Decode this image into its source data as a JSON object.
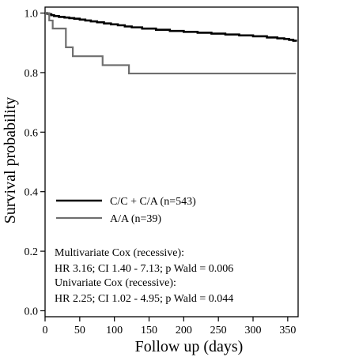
{
  "chart_data": {
    "type": "line",
    "xlabel": "Follow up (days)",
    "ylabel": "Survival probability",
    "xlim": [
      0,
      365
    ],
    "ylim": [
      -0.02,
      1.02
    ],
    "x_ticks": [
      "0",
      "50",
      "100",
      "150",
      "200",
      "250",
      "300",
      "350"
    ],
    "x_tick_values": [
      0,
      50,
      100,
      150,
      200,
      250,
      300,
      350
    ],
    "y_ticks": [
      "0.0",
      "0.2",
      "0.4",
      "0.6",
      "0.8",
      "1.0"
    ],
    "y_tick_values": [
      0.0,
      0.2,
      0.4,
      0.6,
      0.8,
      1.0
    ],
    "grid": false,
    "legend_position": "bottom-left",
    "series": [
      {
        "name": "C/C + C/A (n=543)",
        "color": "#000000",
        "step": true,
        "x": [
          0,
          3,
          6,
          9,
          13,
          20,
          28,
          35,
          42,
          50,
          58,
          66,
          75,
          85,
          95,
          105,
          115,
          125,
          140,
          160,
          180,
          200,
          220,
          240,
          260,
          280,
          300,
          320,
          335,
          345,
          352,
          358,
          362
        ],
        "y": [
          1.0,
          0.998,
          0.996,
          0.993,
          0.99,
          0.987,
          0.985,
          0.983,
          0.981,
          0.978,
          0.975,
          0.972,
          0.969,
          0.965,
          0.962,
          0.959,
          0.955,
          0.952,
          0.948,
          0.944,
          0.94,
          0.937,
          0.934,
          0.931,
          0.928,
          0.925,
          0.922,
          0.918,
          0.915,
          0.913,
          0.91,
          0.907,
          0.904
        ]
      },
      {
        "name": "A/A (n=39)",
        "color": "#6f6f6f",
        "step": true,
        "x": [
          0,
          6,
          11,
          30,
          40,
          83,
          121,
          362
        ],
        "y": [
          1.0,
          0.975,
          0.948,
          0.885,
          0.855,
          0.825,
          0.797,
          0.797
        ]
      }
    ],
    "annotations": [
      "Multivariate Cox (recessive):",
      "HR 3.16; CI  1.40 - 7.13; p Wald = 0.006",
      "Univariate Cox (recessive):",
      "HR 2.25; CI 1.02 - 4.95; p Wald = 0.044"
    ]
  }
}
